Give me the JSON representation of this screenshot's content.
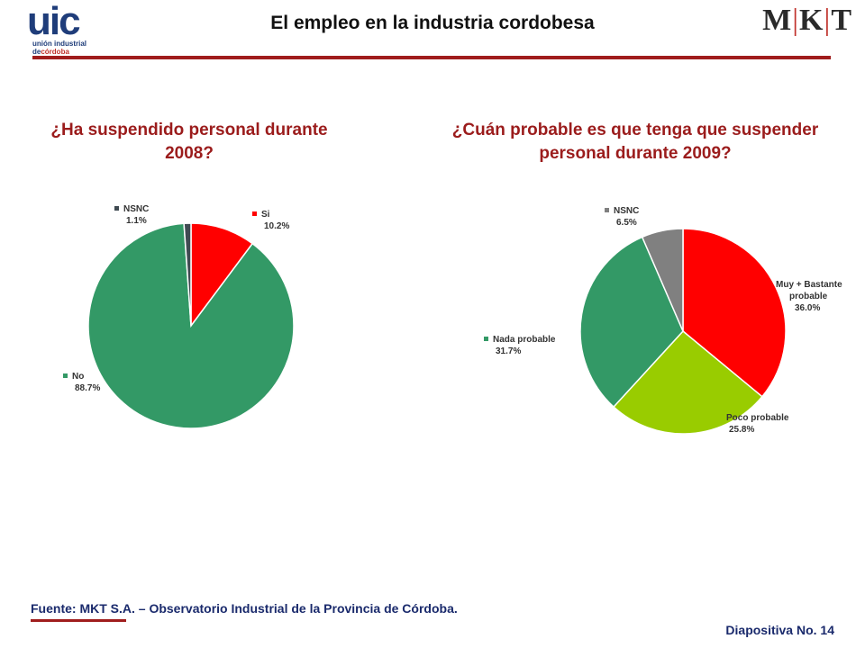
{
  "header": {
    "title": "El empleo en la industria cordobesa",
    "logo_left": {
      "mark": "uic",
      "line1": "unión industrial",
      "line2_prefix": "de",
      "line2_highlight": "córdoba"
    },
    "logo_right": {
      "left": "M",
      "sep1": "|",
      "mid": "K",
      "sep2": "|",
      "right": "T"
    }
  },
  "footer": {
    "source": "Fuente: MKT S.A. – Observatorio Industrial de la Provincia de Córdoba.",
    "slide_number": "Diapositiva No. 14"
  },
  "chart_data": [
    {
      "type": "pie",
      "title": "¿Ha suspendido personal durante 2008?",
      "start_angle_deg": 0,
      "slices": [
        {
          "label": "Si",
          "value": 10.2,
          "value_text": "10.2%",
          "color": "#ff0000"
        },
        {
          "label": "No",
          "value": 88.7,
          "value_text": "88.7%",
          "color": "#339966"
        },
        {
          "label": "NSNC",
          "value": 1.1,
          "value_text": "1.1%",
          "color": "#404a52"
        }
      ]
    },
    {
      "type": "pie",
      "title": "¿Cuán probable es que tenga que suspender personal durante 2009?",
      "start_angle_deg": 0,
      "slices": [
        {
          "label": "Muy + Bastante probable",
          "value": 36.0,
          "value_text": "36.0%",
          "color": "#ff0000"
        },
        {
          "label": "Poco probable",
          "value": 25.8,
          "value_text": "25.8%",
          "color": "#99cc00"
        },
        {
          "label": "Nada probable",
          "value": 31.7,
          "value_text": "31.7%",
          "color": "#339966"
        },
        {
          "label": "NSNC",
          "value": 6.5,
          "value_text": "6.5%",
          "color": "#808080"
        }
      ]
    }
  ]
}
